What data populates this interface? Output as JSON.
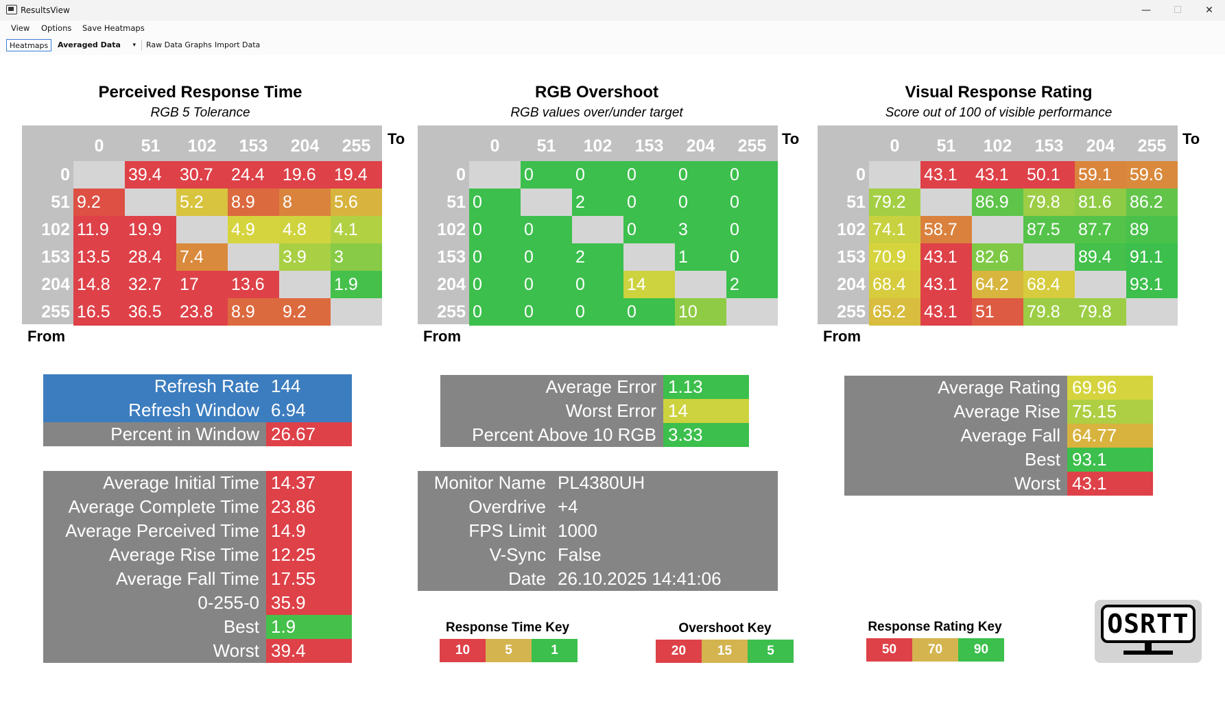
{
  "window": {
    "title": "ResultsView",
    "minimize": "—",
    "maximize": "☐",
    "close": "✕"
  },
  "menu": {
    "view": "View",
    "options": "Options",
    "save_heatmaps": "Save Heatmaps"
  },
  "toolbar": {
    "heatmaps": "Heatmaps",
    "averaged_data": "Averaged Data",
    "dropdown_arrow": "▾",
    "raw_data_graphs": "Raw Data Graphs",
    "import_data": "Import Data"
  },
  "colors": {
    "red": "#de4148",
    "orange": "#d8893d",
    "yellow": "#d6d43e",
    "lime": "#a9cf44",
    "green": "#3cbf4c",
    "gray": "#858585",
    "blue": "#3c7dbf",
    "key_red": "#de4148",
    "key_yellow": "#d4b44f",
    "key_green": "#3cbf4c"
  },
  "axis": {
    "to": "To",
    "from": "From"
  },
  "heatmaps": [
    {
      "title": "Perceived Response Time",
      "subtitle": "RGB 5 Tolerance",
      "cols": [
        "0",
        "51",
        "102",
        "153",
        "204",
        "255"
      ],
      "rows": [
        "0",
        "51",
        "102",
        "153",
        "204",
        "255"
      ],
      "cells": [
        [
          "",
          "39.4",
          "30.7",
          "24.4",
          "19.6",
          "19.4"
        ],
        [
          "9.2",
          "",
          "5.2",
          "8.9",
          "8",
          "5.6"
        ],
        [
          "11.9",
          "19.9",
          "",
          "4.9",
          "4.8",
          "4.1"
        ],
        [
          "13.5",
          "28.4",
          "7.4",
          "",
          "3.9",
          "3"
        ],
        [
          "14.8",
          "32.7",
          "17",
          "13.6",
          "",
          "1.9"
        ],
        [
          "16.5",
          "36.5",
          "23.8",
          "8.9",
          "9.2",
          ""
        ]
      ],
      "cell_colors": [
        [
          "diag",
          "#de4148",
          "#de4148",
          "#de4148",
          "#de4148",
          "#de4148"
        ],
        [
          "#dd5043",
          "diag",
          "#d8c43e",
          "#dc6a3f",
          "#da833d",
          "#d8b43e"
        ],
        [
          "#de4148",
          "#de4148",
          "diag",
          "#d6d43e",
          "#cfd43e",
          "#b2d142"
        ],
        [
          "#de4148",
          "#de4148",
          "#da8a3c",
          "diag",
          "#a9cf44",
          "#87cb46"
        ],
        [
          "#de4148",
          "#de4148",
          "#de4148",
          "#de4148",
          "diag",
          "#45c04b"
        ],
        [
          "#de4148",
          "#de4148",
          "#de4148",
          "#dc6a3f",
          "#dc6a3f",
          "diag"
        ]
      ]
    },
    {
      "title": "RGB Overshoot",
      "subtitle": "RGB values over/under target",
      "cols": [
        "0",
        "51",
        "102",
        "153",
        "204",
        "255"
      ],
      "rows": [
        "0",
        "51",
        "102",
        "153",
        "204",
        "255"
      ],
      "cells": [
        [
          "",
          "0",
          "0",
          "0",
          "0",
          "0"
        ],
        [
          "0",
          "",
          "2",
          "0",
          "0",
          "0"
        ],
        [
          "0",
          "0",
          "",
          "0",
          "3",
          "0"
        ],
        [
          "0",
          "0",
          "2",
          "",
          "1",
          "0"
        ],
        [
          "0",
          "0",
          "0",
          "14",
          "",
          "2"
        ],
        [
          "0",
          "0",
          "0",
          "0",
          "10",
          ""
        ]
      ],
      "cell_colors": [
        [
          "diag",
          "#3cbf4c",
          "#3cbf4c",
          "#3cbf4c",
          "#3cbf4c",
          "#3cbf4c"
        ],
        [
          "#3cbf4c",
          "diag",
          "#3cbf4c",
          "#3cbf4c",
          "#3cbf4c",
          "#3cbf4c"
        ],
        [
          "#3cbf4c",
          "#3cbf4c",
          "diag",
          "#3cbf4c",
          "#3cbf4c",
          "#3cbf4c"
        ],
        [
          "#3cbf4c",
          "#3cbf4c",
          "#3cbf4c",
          "diag",
          "#3cbf4c",
          "#3cbf4c"
        ],
        [
          "#3cbf4c",
          "#3cbf4c",
          "#3cbf4c",
          "#cdd23f",
          "diag",
          "#3cbf4c"
        ],
        [
          "#3cbf4c",
          "#3cbf4c",
          "#3cbf4c",
          "#3cbf4c",
          "#8fcb45",
          "diag"
        ]
      ]
    },
    {
      "title": "Visual Response Rating",
      "subtitle": "Score out of 100 of visible performance",
      "cols": [
        "0",
        "51",
        "102",
        "153",
        "204",
        "255"
      ],
      "rows": [
        "0",
        "51",
        "102",
        "153",
        "204",
        "255"
      ],
      "cells": [
        [
          "",
          "43.1",
          "43.1",
          "50.1",
          "59.1",
          "59.6"
        ],
        [
          "79.2",
          "",
          "86.9",
          "79.8",
          "81.6",
          "86.2"
        ],
        [
          "74.1",
          "58.7",
          "",
          "87.5",
          "87.7",
          "89"
        ],
        [
          "70.9",
          "43.1",
          "82.6",
          "",
          "89.4",
          "91.1"
        ],
        [
          "68.4",
          "43.1",
          "64.2",
          "68.4",
          "",
          "93.1"
        ],
        [
          "65.2",
          "43.1",
          "51",
          "79.8",
          "79.8",
          ""
        ]
      ],
      "cell_colors": [
        [
          "diag",
          "#de4148",
          "#de4148",
          "#de4148",
          "#da853c",
          "#da8a3c"
        ],
        [
          "#a4cf44",
          "diag",
          "#5ec44a",
          "#9ccd45",
          "#8fcb45",
          "#62c54a"
        ],
        [
          "#c8d13f",
          "#da823d",
          "diag",
          "#55c34a",
          "#53c34a",
          "#49c14b"
        ],
        [
          "#d6d43e",
          "#de4148",
          "#7fc947",
          "diag",
          "#44c04b",
          "#3cbf4c"
        ],
        [
          "#d6cc3e",
          "#de4148",
          "#d8b53e",
          "#d6cc3e",
          "diag",
          "#3cbf4c"
        ],
        [
          "#d8bd3e",
          "#de4148",
          "#dd5b43",
          "#9ccd45",
          "#9ccd45",
          "diag"
        ]
      ]
    }
  ],
  "refresh": [
    {
      "label": "Refresh Rate",
      "value": "144",
      "label_color": "#3c7dbf",
      "value_color": "#3c7dbf"
    },
    {
      "label": "Refresh Window",
      "value": "6.94",
      "label_color": "#3c7dbf",
      "value_color": "#3c7dbf"
    },
    {
      "label": "Percent in Window",
      "value": "26.67",
      "label_color": "#858585",
      "value_color": "#de4148"
    }
  ],
  "timing": [
    {
      "label": "Average Initial Time",
      "value": "14.37",
      "value_color": "#de4148"
    },
    {
      "label": "Average Complete Time",
      "value": "23.86",
      "value_color": "#de4148"
    },
    {
      "label": "Average Perceived Time",
      "value": "14.9",
      "value_color": "#de4148"
    },
    {
      "label": "Average Rise Time",
      "value": "12.25",
      "value_color": "#de4148"
    },
    {
      "label": "Average Fall Time",
      "value": "17.55",
      "value_color": "#de4148"
    },
    {
      "label": "0-255-0",
      "value": "35.9",
      "value_color": "#de4148"
    },
    {
      "label": "Best",
      "value": "1.9",
      "value_color": "#45c04b"
    },
    {
      "label": "Worst",
      "value": "39.4",
      "value_color": "#de4148"
    }
  ],
  "error": [
    {
      "label": "Average Error",
      "value": "1.13",
      "value_color": "#3cbf4c"
    },
    {
      "label": "Worst Error",
      "value": "14",
      "value_color": "#cdd23f"
    },
    {
      "label": "Percent Above 10 RGB",
      "value": "3.33",
      "value_color": "#3cbf4c"
    }
  ],
  "monitor": [
    {
      "label": "Monitor Name",
      "value": "PL4380UH"
    },
    {
      "label": "Overdrive",
      "value": "+4"
    },
    {
      "label": "FPS Limit",
      "value": "1000"
    },
    {
      "label": "V-Sync",
      "value": "False"
    },
    {
      "label": "Date",
      "value": "26.10.2025 14:41:06"
    }
  ],
  "rating": [
    {
      "label": "Average Rating",
      "value": "69.96",
      "value_color": "#d6d43e"
    },
    {
      "label": "Average Rise",
      "value": "75.15",
      "value_color": "#aecf43"
    },
    {
      "label": "Average Fall",
      "value": "64.77",
      "value_color": "#d8b33e"
    },
    {
      "label": "Best",
      "value": "93.1",
      "value_color": "#3cbf4c"
    },
    {
      "label": "Worst",
      "value": "43.1",
      "value_color": "#de4148"
    }
  ],
  "keys": {
    "response_time": {
      "title": "Response Time Key",
      "values": [
        "10",
        "5",
        "1"
      ]
    },
    "overshoot": {
      "title": "Overshoot Key",
      "values": [
        "20",
        "15",
        "5"
      ]
    },
    "response_rating": {
      "title": "Response Rating Key",
      "values": [
        "50",
        "70",
        "90"
      ]
    }
  },
  "logo": {
    "text": "OSRTT"
  }
}
